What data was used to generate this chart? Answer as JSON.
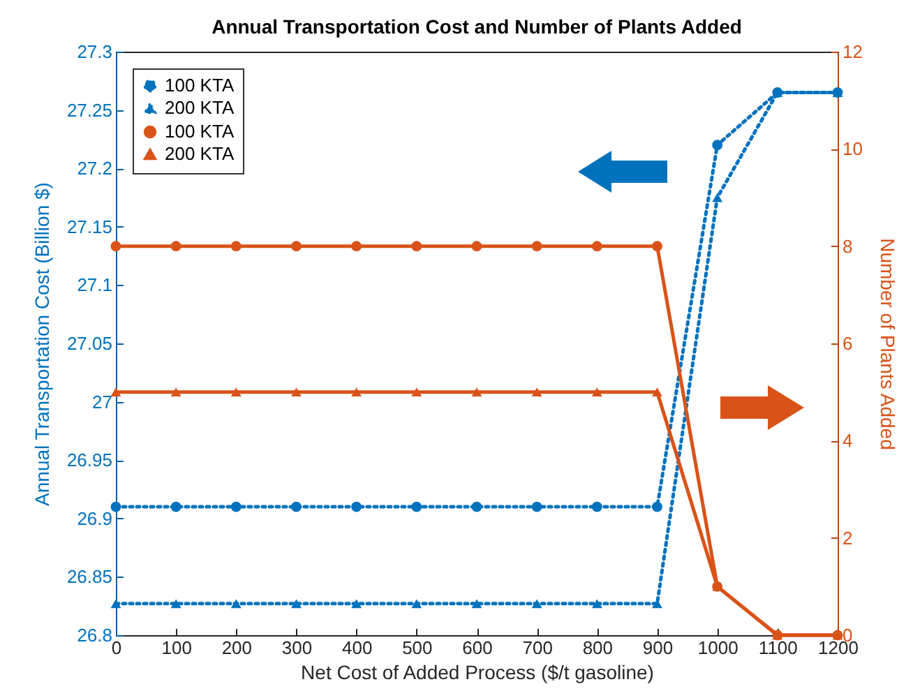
{
  "chart_data": {
    "type": "line",
    "title": "Annual Transportation Cost and Number of Plants Added",
    "xlabel": "Net Cost of Added Process ($/t gasoline)",
    "ylabel": "Annual Transportation Cost (Billion $)",
    "y2label": "Number of Plants Added",
    "x": [
      0,
      100,
      200,
      300,
      400,
      500,
      600,
      700,
      800,
      900,
      1000,
      1100,
      1200
    ],
    "series": [
      {
        "name": "100 KTA",
        "color": "#0072bd",
        "axis": "y",
        "marker": "circle",
        "line_style": "dotted",
        "values": [
          26.91,
          26.91,
          26.91,
          26.91,
          26.91,
          26.91,
          26.91,
          26.91,
          26.91,
          26.91,
          27.22,
          27.265,
          27.265
        ]
      },
      {
        "name": "200 KTA",
        "color": "#0072bd",
        "axis": "y",
        "marker": "triangle",
        "line_style": "dotted",
        "values": [
          26.827,
          26.827,
          26.827,
          26.827,
          26.827,
          26.827,
          26.827,
          26.827,
          26.827,
          26.827,
          27.175,
          27.265,
          27.265
        ]
      },
      {
        "name": "100 KTA",
        "color": "#d95319",
        "axis": "y2",
        "marker": "circle",
        "line_style": "solid",
        "values": [
          8,
          8,
          8,
          8,
          8,
          8,
          8,
          8,
          8,
          8,
          1,
          0,
          0
        ]
      },
      {
        "name": "200 KTA",
        "color": "#d95319",
        "axis": "y2",
        "marker": "triangle",
        "line_style": "solid",
        "values": [
          5,
          5,
          5,
          5,
          5,
          5,
          5,
          5,
          5,
          5,
          1,
          0,
          0
        ]
      }
    ],
    "xlim": [
      0,
      1200
    ],
    "xticks": [
      0,
      100,
      200,
      300,
      400,
      500,
      600,
      700,
      800,
      900,
      1000,
      1100,
      1200
    ],
    "ylim": [
      26.8,
      27.3
    ],
    "yticks": [
      26.8,
      26.85,
      26.9,
      26.95,
      27,
      27.05,
      27.1,
      27.15,
      27.2,
      27.25,
      27.3
    ],
    "y2lim": [
      0,
      12
    ],
    "y2ticks": [
      0,
      2,
      4,
      6,
      8,
      10,
      12
    ],
    "grid": false,
    "legend": "top left"
  }
}
